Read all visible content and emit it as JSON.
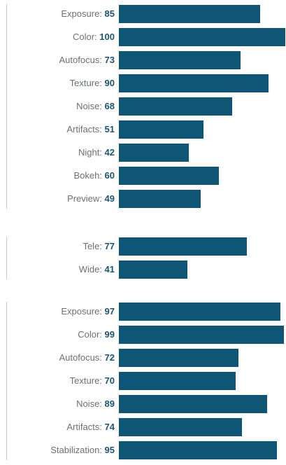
{
  "chart_data": {
    "type": "bar",
    "orientation": "horizontal",
    "xlim": [
      0,
      100
    ],
    "colors": {
      "bar": "#0f5576",
      "value_text": "#1d5570",
      "label_text": "#6b7075",
      "group_rule": "#c8cbd0"
    },
    "groups": [
      {
        "categories": [
          "Exposure",
          "Color",
          "Autofocus",
          "Texture",
          "Noise",
          "Artifacts",
          "Night",
          "Bokeh",
          "Preview"
        ],
        "values": [
          85,
          100,
          73,
          90,
          68,
          51,
          42,
          60,
          49
        ]
      },
      {
        "categories": [
          "Tele",
          "Wide"
        ],
        "values": [
          77,
          41
        ]
      },
      {
        "categories": [
          "Exposure",
          "Color",
          "Autofocus",
          "Texture",
          "Noise",
          "Artifacts",
          "Stabilization"
        ],
        "values": [
          97,
          99,
          72,
          70,
          89,
          74,
          95
        ]
      }
    ]
  }
}
